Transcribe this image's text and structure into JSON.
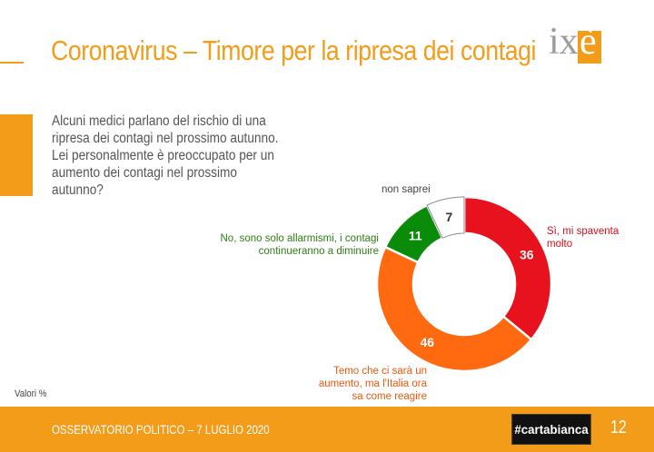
{
  "slide": {
    "title": "Coronavirus – Timore per la ripresa dei contagi",
    "logo_text": "ixè",
    "logo_ix": "ix",
    "logo_e": "è",
    "question": "Alcuni medici parlano del rischio di una ripresa dei contagi nel prossimo autunno. Lei personalmente è preoccupato per un aumento dei contagi nel prossimo autunno?",
    "note": "Valori %",
    "footer_text": "OSSERVATORIO POLITICO – 7 LUGLIO 2020",
    "brand": "#cartabianca",
    "page_number": "12"
  },
  "colors": {
    "accent": "#f39c1a",
    "si": "#e8121f",
    "temo": "#ff6a10",
    "no": "#0a8c0a",
    "nonsaprei": "#ffffff"
  },
  "chart_data": {
    "type": "pie",
    "variant": "donut",
    "slices": [
      {
        "label": "Sì, mi spaventa molto",
        "value": 36,
        "color": "#e8121f"
      },
      {
        "label": "Temo che ci sarà un aumento, ma l'Italia ora sa come reagire",
        "value": 46,
        "color": "#ff6a10"
      },
      {
        "label": "No, sono solo allarmismi, i contagi continueranno a diminuire",
        "value": 11,
        "color": "#0a8c0a"
      },
      {
        "label": "non saprei",
        "value": 7,
        "color": "#ffffff"
      }
    ],
    "value_labels": [
      "36",
      "46",
      "11",
      "7"
    ],
    "slice_labels": {
      "si": [
        "Sì, mi spaventa",
        "molto"
      ],
      "temo": [
        "Temo che ci sarà un",
        "aumento, ma l'Italia ora",
        "sa come reagire"
      ],
      "no": [
        "No, sono solo allarmismi, i contagi",
        "continueranno a diminuire"
      ],
      "nonsaprei": [
        "non saprei"
      ]
    }
  }
}
